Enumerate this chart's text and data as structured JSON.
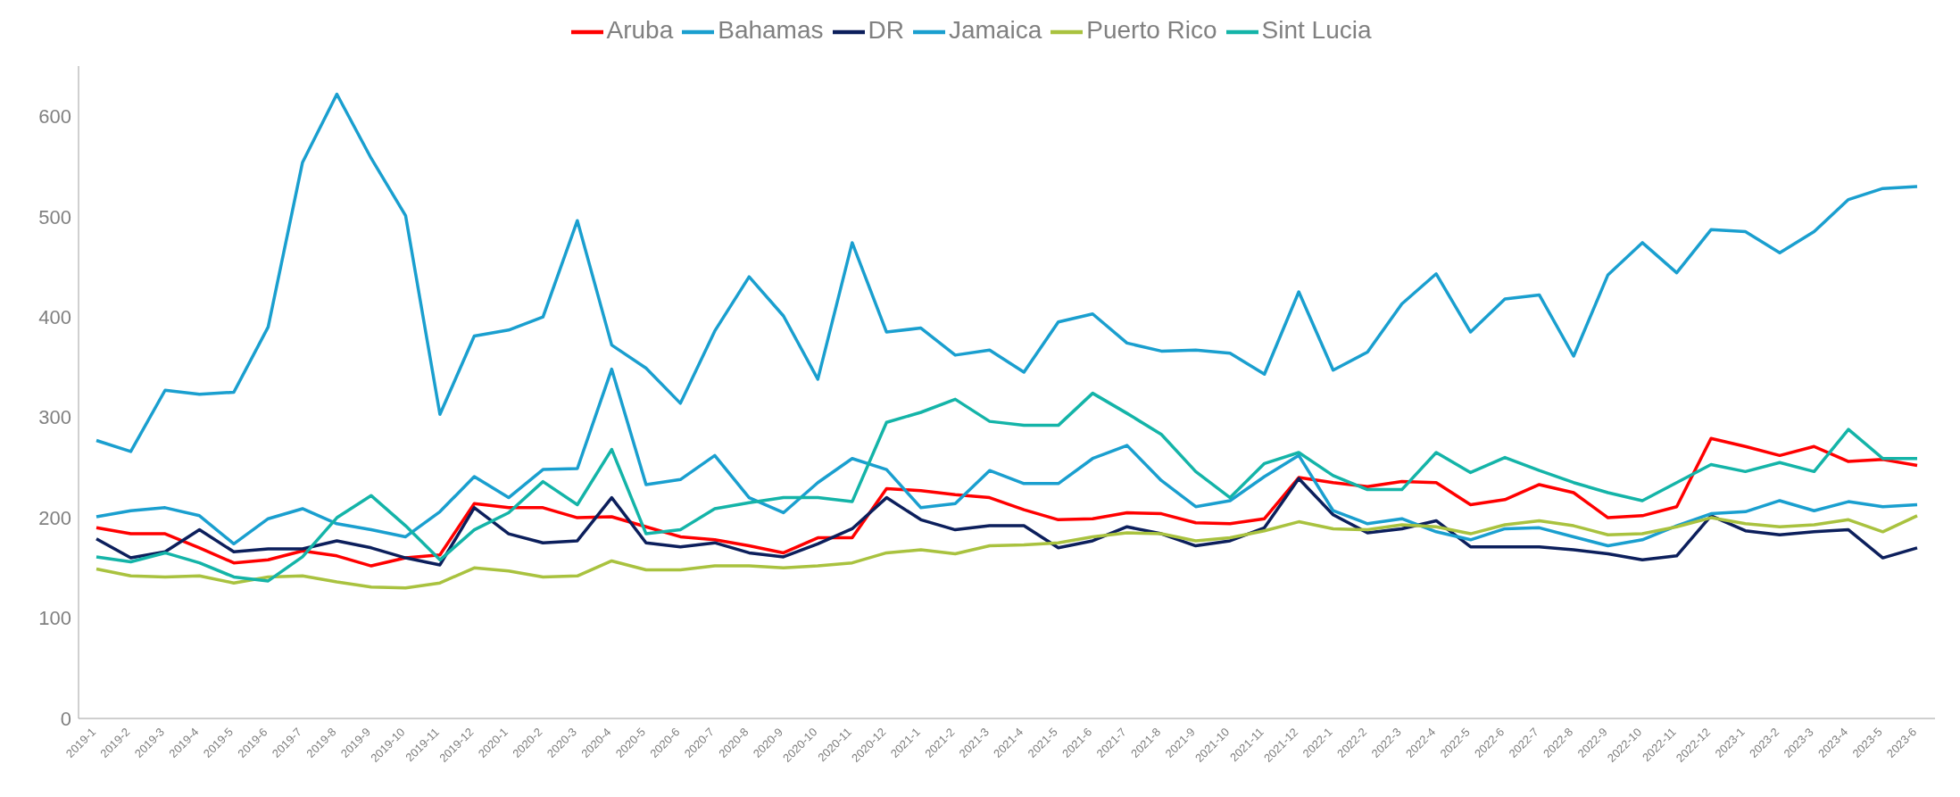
{
  "chart_data": {
    "type": "line",
    "categories": [
      "2019-1",
      "2019-2",
      "2019-3",
      "2019-4",
      "2019-5",
      "2019-6",
      "2019-7",
      "2019-8",
      "2019-9",
      "2019-10",
      "2019-11",
      "2019-12",
      "2020-1",
      "2020-2",
      "2020-3",
      "2020-4",
      "2020-5",
      "2020-6",
      "2020-7",
      "2020-8",
      "2020-9",
      "2020-10",
      "2020-11",
      "2020-12",
      "2021-1",
      "2021-2",
      "2021-3",
      "2021-4",
      "2021-5",
      "2021-6",
      "2021-7",
      "2021-8",
      "2021-9",
      "2021-10",
      "2021-11",
      "2021-12",
      "2022-1",
      "2022-2",
      "2022-3",
      "2022-4",
      "2022-5",
      "2022-6",
      "2022-7",
      "2022-8",
      "2022-9",
      "2022-10",
      "2022-11",
      "2022-12",
      "2023-1",
      "2023-2",
      "2023-3",
      "2023-4",
      "2023-5",
      "2023-6"
    ],
    "series": [
      {
        "name": "Aruba",
        "color": "#ff0000",
        "values": [
          190,
          184,
          184,
          170,
          155,
          158,
          167,
          162,
          152,
          160,
          163,
          214,
          210,
          210,
          200,
          201,
          191,
          181,
          178,
          172,
          165,
          180,
          180,
          229,
          227,
          223,
          220,
          208,
          198,
          199,
          205,
          204,
          195,
          194,
          199,
          240,
          235,
          231,
          236,
          235,
          213,
          218,
          233,
          225,
          200,
          202,
          211,
          279,
          271,
          262,
          271,
          256,
          258,
          252
        ]
      },
      {
        "name": "Bahamas",
        "color": "#1a9fcf",
        "values": [
          277,
          266,
          327,
          323,
          325,
          390,
          554,
          622,
          558,
          501,
          303,
          381,
          387,
          400,
          496,
          372,
          349,
          314,
          386,
          440,
          401,
          338,
          474,
          385,
          389,
          362,
          367,
          345,
          395,
          403,
          374,
          366,
          367,
          364,
          343,
          425,
          347,
          365,
          413,
          443,
          385,
          418,
          422,
          361,
          442,
          474,
          444,
          487,
          485,
          464,
          485,
          517,
          528,
          530
        ]
      },
      {
        "name": "DR",
        "color": "#0c1f5c",
        "values": [
          179,
          160,
          166,
          188,
          166,
          169,
          169,
          177,
          170,
          160,
          153,
          210,
          184,
          175,
          177,
          220,
          175,
          171,
          175,
          165,
          161,
          174,
          189,
          220,
          198,
          188,
          192,
          192,
          170,
          177,
          191,
          184,
          172,
          177,
          190,
          239,
          203,
          185,
          189,
          197,
          171,
          171,
          171,
          168,
          164,
          158,
          162,
          202,
          187,
          183,
          186,
          188,
          160,
          170
        ]
      },
      {
        "name": "Jamaica",
        "color": "#1a9fcf",
        "values": [
          201,
          207,
          210,
          202,
          174,
          199,
          209,
          194,
          188,
          181,
          206,
          241,
          220,
          248,
          249,
          348,
          233,
          238,
          262,
          220,
          205,
          235,
          259,
          248,
          210,
          214,
          247,
          234,
          234,
          259,
          272,
          237,
          211,
          217,
          241,
          262,
          207,
          194,
          199,
          186,
          178,
          189,
          190,
          181,
          172,
          178,
          192,
          204,
          206,
          217,
          207,
          216,
          211,
          213
        ]
      },
      {
        "name": "Puerto Rico",
        "color": "#a9c23f",
        "values": [
          149,
          142,
          141,
          142,
          135,
          141,
          142,
          136,
          131,
          130,
          135,
          150,
          147,
          141,
          142,
          157,
          148,
          148,
          152,
          152,
          150,
          152,
          155,
          165,
          168,
          164,
          172,
          173,
          175,
          181,
          185,
          184,
          177,
          180,
          187,
          196,
          189,
          188,
          193,
          191,
          184,
          193,
          197,
          192,
          183,
          184,
          191,
          200,
          194,
          191,
          193,
          198,
          186,
          202
        ]
      },
      {
        "name": "Sint Lucia",
        "color": "#14b4a8",
        "values": [
          161,
          156,
          165,
          155,
          141,
          137,
          161,
          200,
          222,
          192,
          158,
          188,
          205,
          236,
          213,
          268,
          184,
          188,
          209,
          215,
          220,
          220,
          216,
          295,
          305,
          318,
          296,
          292,
          292,
          324,
          304,
          283,
          246,
          220,
          254,
          265,
          242,
          228,
          228,
          265,
          245,
          260,
          247,
          235,
          225,
          217,
          235,
          253,
          246,
          255,
          246,
          288,
          259,
          259
        ]
      }
    ],
    "ylim": [
      0,
      650
    ],
    "yticks": [
      0,
      100,
      200,
      300,
      400,
      500,
      600
    ],
    "grid": false,
    "legend": "top",
    "marker": "none",
    "line_style": "solid"
  }
}
